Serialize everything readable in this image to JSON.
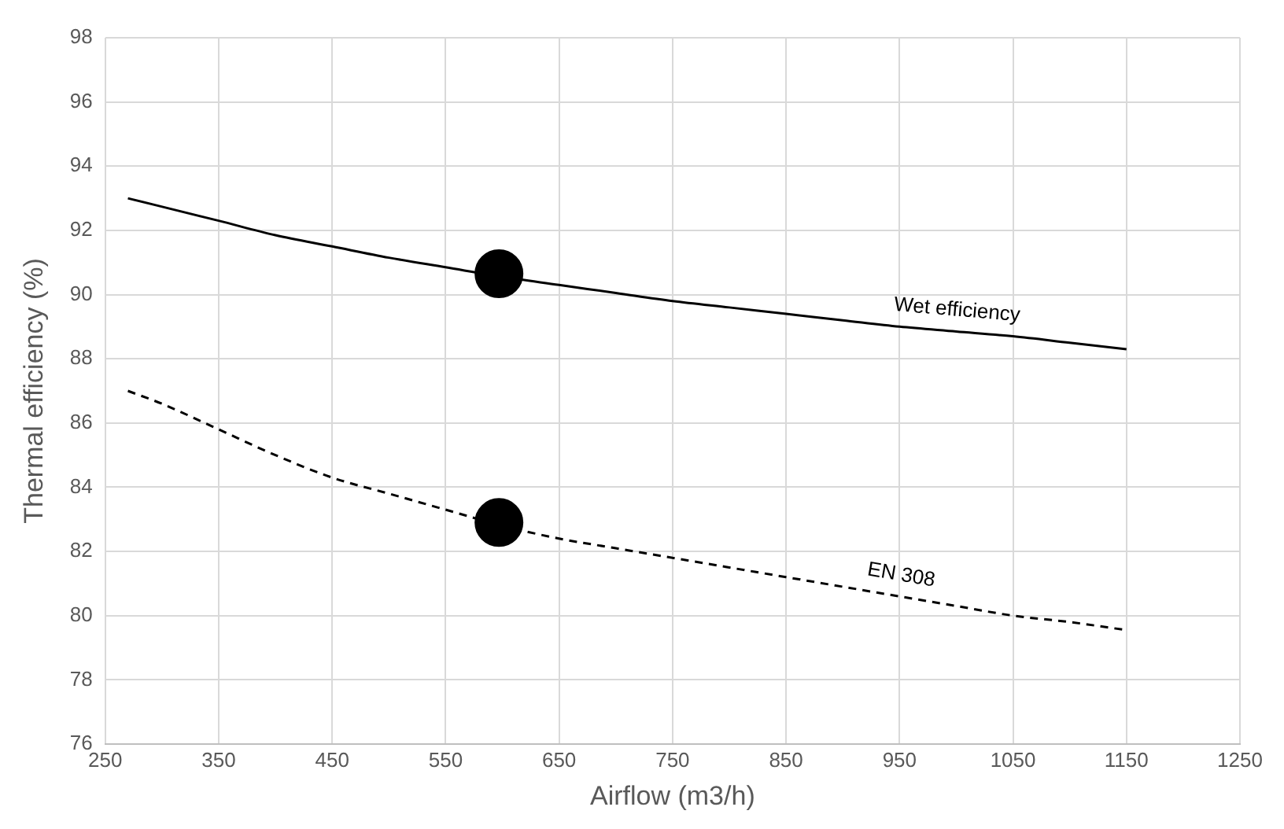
{
  "chart_data": {
    "type": "line",
    "xlabel": "Airflow (m3/h)",
    "ylabel": "Thermal efficiency (%)",
    "xlim": [
      250,
      1250
    ],
    "xticks": [
      250,
      350,
      450,
      550,
      650,
      750,
      850,
      950,
      1050,
      1150,
      1250
    ],
    "ylim": [
      76,
      98
    ],
    "yticks": [
      76,
      78,
      80,
      82,
      84,
      86,
      88,
      90,
      92,
      94,
      96,
      98
    ],
    "grid": true,
    "legend": false,
    "marker": "none",
    "series": [
      {
        "name": "Wet efficiency",
        "color": "#000000",
        "line_style": "solid",
        "x": [
          270,
          350,
          400,
          450,
          500,
          550,
          600,
          650,
          700,
          750,
          800,
          850,
          900,
          950,
          1000,
          1050,
          1100,
          1150
        ],
        "values": [
          93.0,
          92.3,
          91.85,
          91.5,
          91.15,
          90.85,
          90.55,
          90.3,
          90.05,
          89.8,
          89.6,
          89.4,
          89.2,
          89.0,
          88.85,
          88.7,
          88.5,
          88.3
        ]
      },
      {
        "name": "EN 308",
        "color": "#000000",
        "line_style": "dashed",
        "x": [
          270,
          300,
          350,
          400,
          450,
          500,
          550,
          600,
          650,
          700,
          750,
          800,
          850,
          900,
          950,
          1000,
          1050,
          1100,
          1150
        ],
        "values": [
          87.0,
          86.6,
          85.8,
          85.0,
          84.3,
          83.8,
          83.3,
          82.8,
          82.4,
          82.1,
          81.8,
          81.5,
          81.2,
          80.9,
          80.6,
          80.3,
          80.0,
          79.8,
          79.55
        ]
      },
      {
        "type": "scatter",
        "marker": "circle",
        "color": "#000000",
        "x": [
          597,
          597
        ],
        "values": [
          90.65,
          82.9
        ]
      }
    ]
  }
}
